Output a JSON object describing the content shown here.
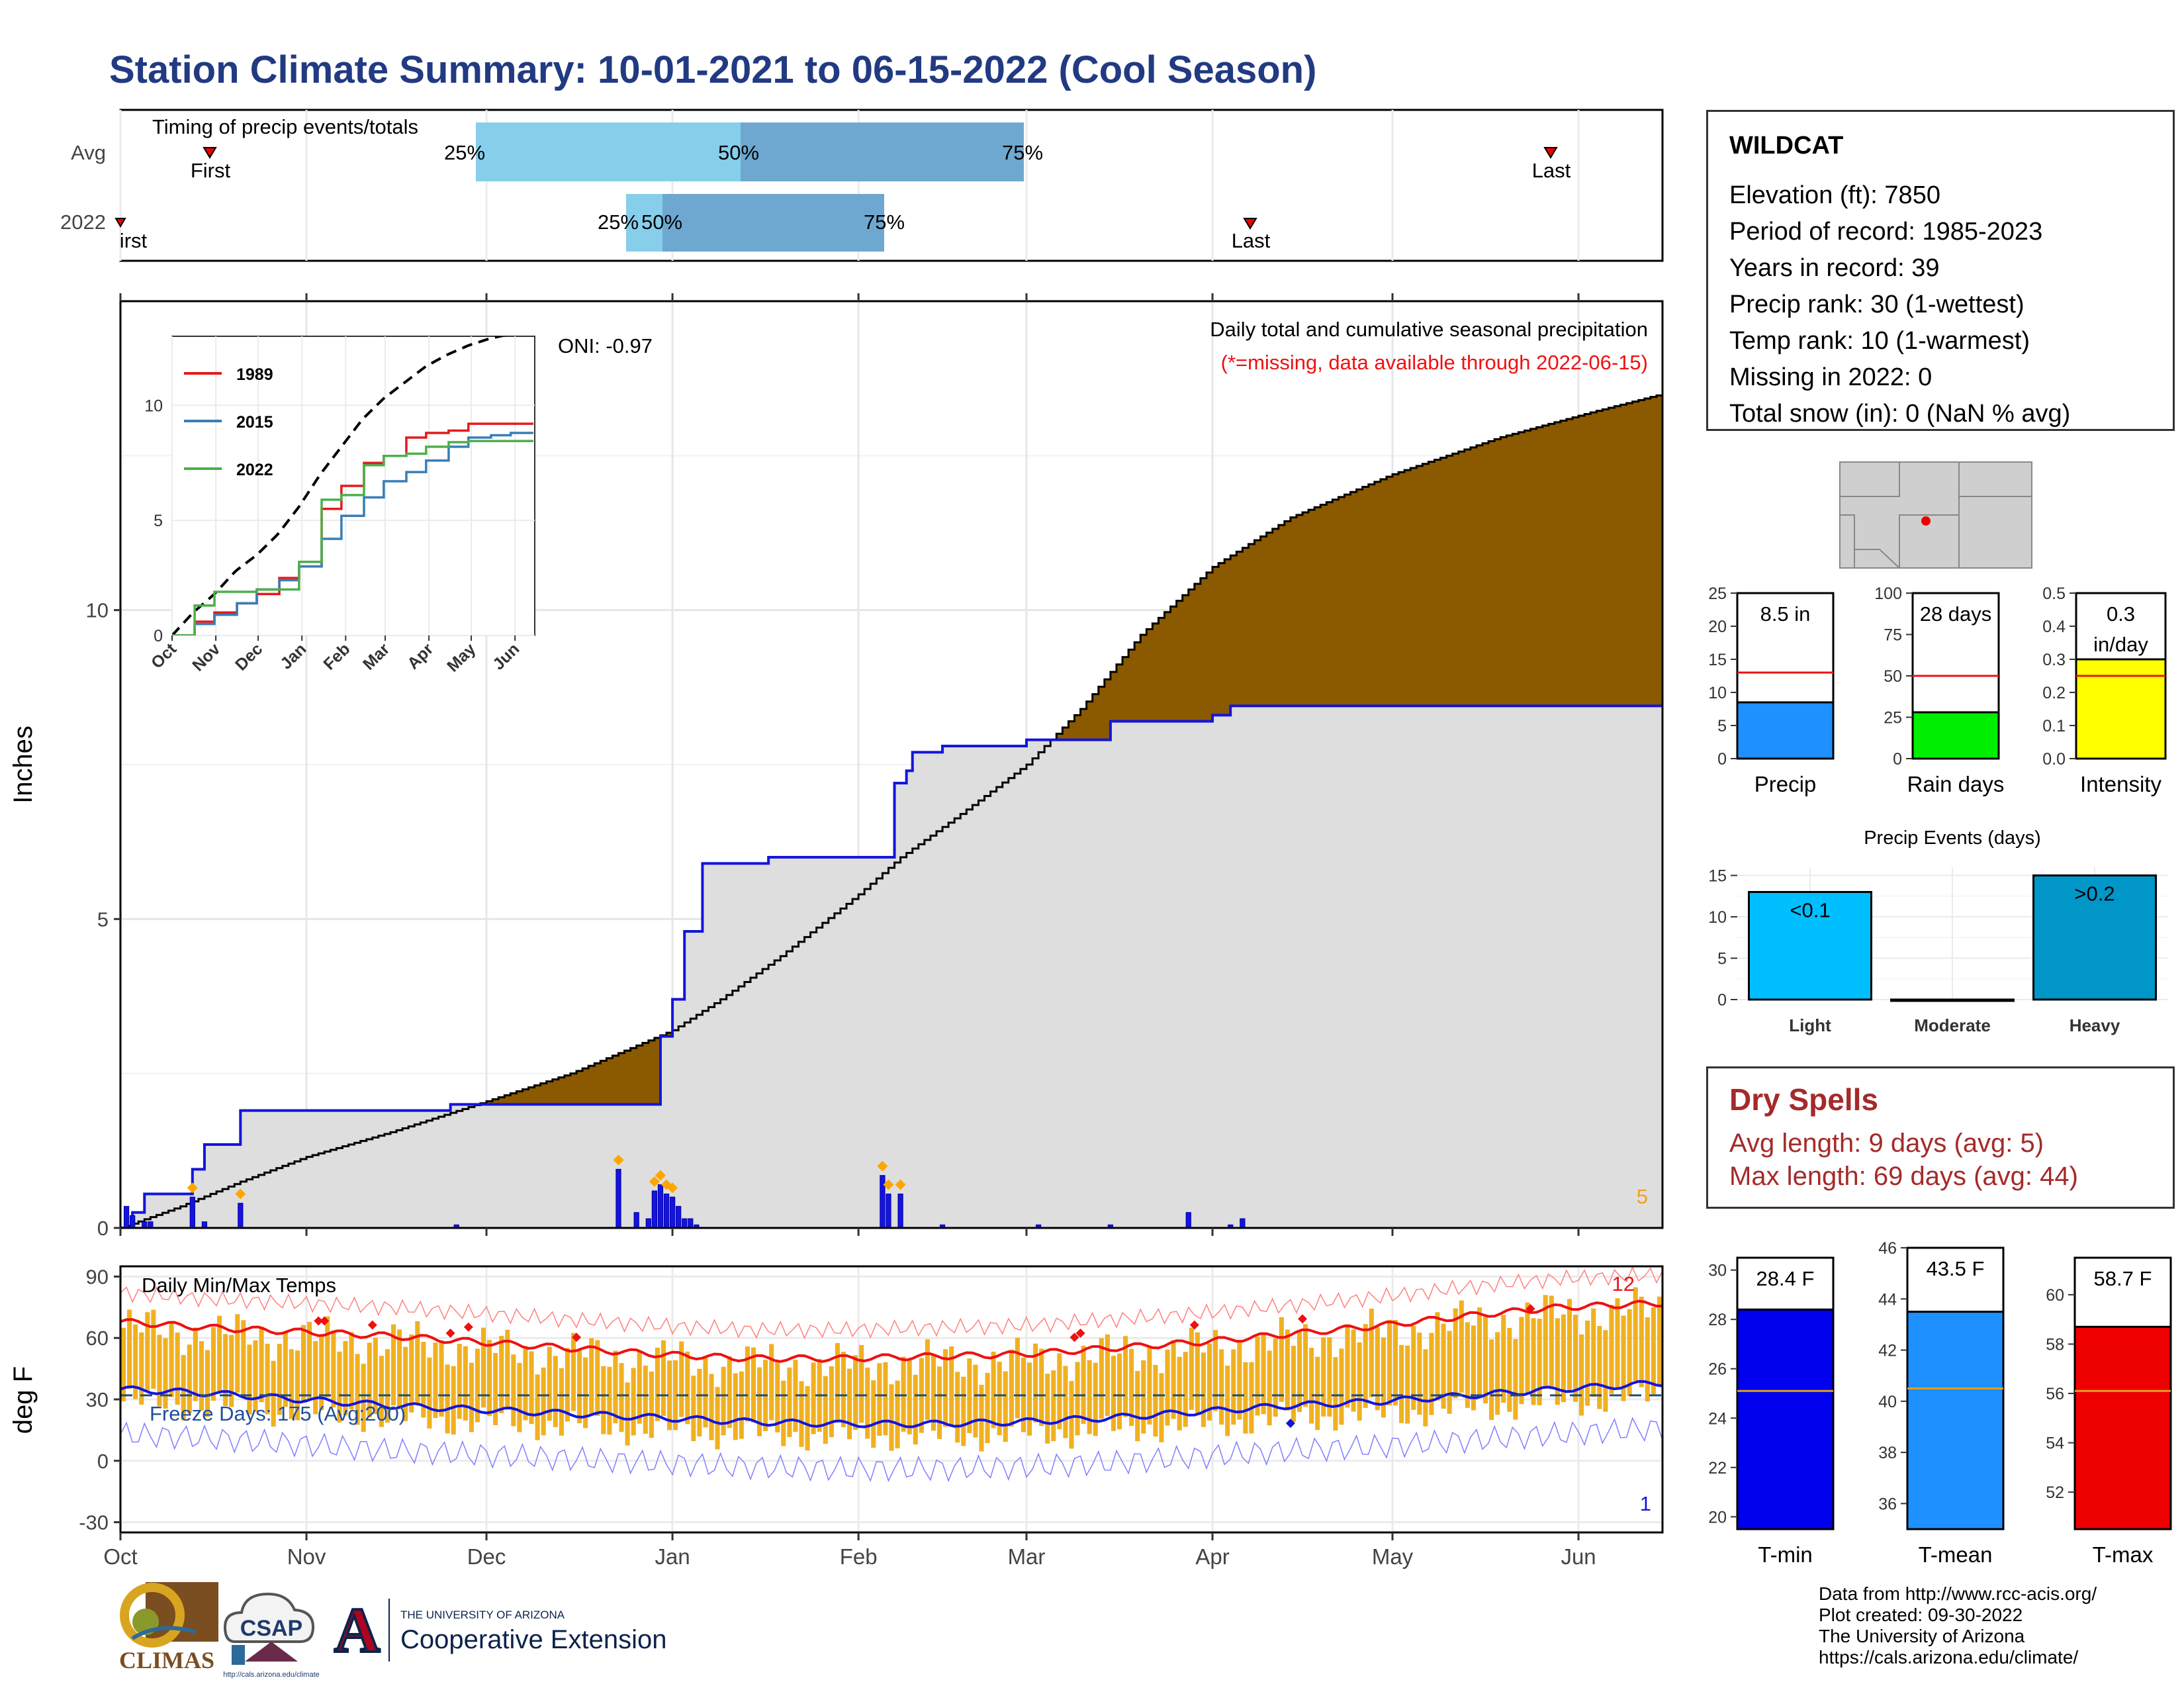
{
  "title": "Station Climate Summary: 10-01-2021 to 06-15-2022 (Cool Season)",
  "timing": {
    "panel_label": "Timing of precip events/totals",
    "rows": [
      "Avg",
      "2022"
    ],
    "pct_labels": [
      "25%",
      "50%",
      "75%"
    ],
    "first_label": "First",
    "first_label_2022": "First",
    "last_label": "Last"
  },
  "main": {
    "y_label": "Inches",
    "y_ticks": [
      "0",
      "5",
      "10"
    ],
    "oni": "ONI: -0.97",
    "desc": "Daily total and cumulative seasonal precipitation",
    "missing_note": "(*=missing, data available through 2022-06-15)",
    "corner_count": "5",
    "x_ticks": [
      "Oct",
      "Nov",
      "Dec",
      "Jan",
      "Feb",
      "Mar",
      "Apr",
      "May",
      "Jun"
    ]
  },
  "inset": {
    "legend": [
      "1989",
      "2015",
      "2022"
    ],
    "y_ticks": [
      "0",
      "5",
      "10"
    ],
    "x_ticks": [
      "Oct",
      "Nov",
      "Dec",
      "Jan",
      "Feb",
      "Mar",
      "Apr",
      "May",
      "Jun"
    ]
  },
  "temps": {
    "y_label": "deg F",
    "panel_label": "Daily Min/Max Temps",
    "freeze": "Freeze Days: 175 (Avg:200)",
    "y_ticks": [
      "90",
      "60",
      "30",
      "0",
      "-30"
    ],
    "max_count": "12",
    "min_count": "1"
  },
  "station": {
    "name": "WILDCAT",
    "elevation": "Elevation (ft): 7850",
    "period": "Period of record: 1985-2023",
    "years": "Years in record: 39",
    "precip_rank": "Precip rank: 30 (1-wettest)",
    "temp_rank": "Temp rank: 10 (1-warmest)",
    "missing": "Missing in 2022: 0",
    "snow": "Total snow (in): 0 (NaN % avg)"
  },
  "mini_bars": {
    "precip": {
      "label": "Precip",
      "value_label": "8.5 in",
      "ticks": [
        "0",
        "5",
        "10",
        "15",
        "20",
        "25"
      ]
    },
    "rain_days": {
      "label": "Rain days",
      "value_label": "28 days",
      "ticks": [
        "0",
        "25",
        "50",
        "75",
        "100"
      ]
    },
    "intensity": {
      "label": "Intensity",
      "value_label": "0.3",
      "value_label2": "in/day",
      "ticks": [
        "0.0",
        "0.1",
        "0.2",
        "0.3",
        "0.4",
        "0.5"
      ]
    }
  },
  "events": {
    "title": "Precip Events (days)",
    "categories": [
      "Light",
      "Moderate",
      "Heavy"
    ],
    "bar_labels": [
      "<0.1",
      "",
      ">0.2"
    ],
    "ticks": [
      "0",
      "5",
      "10",
      "15"
    ]
  },
  "dry": {
    "title": "Dry Spells",
    "avg": "Avg length: 9 days (avg: 5)",
    "max": "Max length: 69 days (avg: 44)"
  },
  "temp_bars": {
    "tmin": {
      "label": "T-min",
      "value_label": "28.4 F",
      "ticks": [
        "20",
        "22",
        "24",
        "26",
        "28",
        "30"
      ]
    },
    "tmean": {
      "label": "T-mean",
      "value_label": "43.5 F",
      "ticks": [
        "36",
        "38",
        "40",
        "42",
        "44",
        "46"
      ]
    },
    "tmax": {
      "label": "T-max",
      "value_label": "58.7 F",
      "ticks": [
        "52",
        "54",
        "56",
        "58",
        "60"
      ]
    }
  },
  "credits": [
    "Data from http://www.rcc-acis.org/",
    "Plot created: 09-30-2022",
    "The University of Arizona",
    "https://cals.arizona.edu/climate/"
  ],
  "logos": {
    "climas": "CLIMAS",
    "csap": "CSAP",
    "csap_url": "http://cals.arizona.edu/climate",
    "ua_small": "THE UNIVERSITY OF ARIZONA",
    "ua_big": "Cooperative Extension",
    "ua_letter": "A"
  },
  "colors": {
    "title": "#213a82",
    "brown": "#8b5a00",
    "green": "#138f13",
    "grey_fill": "#dedede",
    "blue_line": "#1414dc",
    "orange": "#f0b020",
    "red": "#ee1111",
    "light_blue": "#87ceeb",
    "steel_blue": "#6ea8d0"
  },
  "chart_data": [
    {
      "type": "area",
      "title": "Daily total and cumulative seasonal precipitation",
      "ylabel": "Inches",
      "ylim": [
        0,
        15
      ],
      "x_unit": "days since Oct 1",
      "series": [
        {
          "name": "avg_cumulative",
          "x": [
            0,
            10,
            20,
            31,
            45,
            61,
            75,
            92,
            100,
            110,
            123,
            130,
            140,
            151,
            160,
            170,
            182,
            195,
            212,
            230,
            245,
            257
          ],
          "y": [
            0,
            0.35,
            0.75,
            1.15,
            1.55,
            2.05,
            2.5,
            3.2,
            3.7,
            4.4,
            5.4,
            6.0,
            6.7,
            7.5,
            8.4,
            9.6,
            10.7,
            11.5,
            12.2,
            12.8,
            13.2,
            13.5
          ]
        },
        {
          "name": "2022_cumulative",
          "x": [
            0,
            2,
            4,
            12,
            14,
            20,
            37,
            55,
            84,
            90,
            92,
            94,
            97,
            100,
            107,
            108,
            115,
            125,
            129,
            131,
            132,
            137,
            151,
            153,
            165,
            182,
            185,
            187,
            257
          ],
          "y": [
            0,
            0.25,
            0.55,
            0.95,
            1.35,
            1.9,
            1.9,
            2.0,
            2.0,
            3.1,
            3.7,
            4.8,
            5.9,
            5.9,
            5.9,
            6.0,
            6.0,
            6.0,
            7.2,
            7.4,
            7.7,
            7.8,
            7.9,
            7.9,
            8.2,
            8.3,
            8.45,
            8.45,
            8.45
          ]
        }
      ],
      "daily_events": {
        "x": [
          1,
          2,
          4,
          5,
          12,
          14,
          20,
          56,
          83,
          86,
          88,
          89,
          90,
          91,
          92,
          93,
          94,
          95,
          96,
          127,
          128,
          130,
          137,
          153,
          165,
          178,
          185,
          187
        ],
        "y": [
          0.35,
          0.2,
          0.1,
          0.1,
          0.5,
          0.1,
          0.4,
          0.05,
          0.95,
          0.25,
          0.15,
          0.6,
          0.7,
          0.55,
          0.5,
          0.35,
          0.15,
          0.15,
          0.05,
          0.85,
          0.55,
          0.55,
          0.05,
          0.05,
          0.05,
          0.25,
          0.05,
          0.15
        ]
      }
    },
    {
      "type": "line",
      "title": "",
      "ylim": [
        0,
        13
      ],
      "x": [
        0,
        15,
        30,
        45,
        60,
        75,
        90,
        105,
        120,
        135,
        150,
        165,
        180,
        195,
        210,
        225,
        240,
        257
      ],
      "series": [
        {
          "name": "avg",
          "values": [
            0,
            1.0,
            1.8,
            2.8,
            3.5,
            4.4,
            5.6,
            7.0,
            8.2,
            9.4,
            10.3,
            11.0,
            11.7,
            12.2,
            12.6,
            12.9,
            13.1,
            13.3
          ]
        },
        {
          "name": "1989",
          "values": [
            0,
            0.6,
            1.0,
            1.4,
            1.8,
            2.5,
            3.0,
            5.5,
            6.5,
            7.5,
            7.8,
            8.6,
            8.8,
            8.9,
            9.2,
            9.2,
            9.2,
            9.2
          ]
        },
        {
          "name": "2015",
          "values": [
            0,
            0.5,
            0.9,
            1.4,
            2.0,
            2.4,
            3.0,
            4.2,
            5.2,
            6.0,
            6.7,
            7.1,
            7.6,
            8.2,
            8.6,
            8.7,
            8.8,
            8.8
          ]
        },
        {
          "name": "2022",
          "values": [
            0,
            1.3,
            1.9,
            1.9,
            2.0,
            2.0,
            3.2,
            5.9,
            6.1,
            7.4,
            7.8,
            7.9,
            8.2,
            8.4,
            8.45,
            8.45,
            8.45,
            8.45
          ]
        }
      ]
    },
    {
      "type": "line",
      "title": "Daily Min/Max Temps",
      "ylabel": "deg F",
      "ylim": [
        -35,
        95
      ],
      "x": [
        0,
        15,
        30,
        45,
        60,
        75,
        90,
        105,
        120,
        135,
        150,
        165,
        180,
        195,
        210,
        225,
        240,
        257
      ],
      "series": [
        {
          "name": "avg max",
          "values": [
            68,
            65,
            63,
            61,
            58,
            55,
            52,
            50,
            50,
            51,
            52,
            55,
            58,
            62,
            66,
            71,
            75,
            77
          ]
        },
        {
          "name": "avg min",
          "values": [
            35,
            33,
            30,
            27,
            25,
            23,
            21,
            19,
            18,
            18,
            19,
            21,
            24,
            27,
            29,
            32,
            35,
            38
          ]
        }
      ],
      "freeze_line": 32
    },
    {
      "type": "bar",
      "title": "Precip Events (days)",
      "categories": [
        "Light",
        "Moderate",
        "Heavy"
      ],
      "values": [
        13,
        0,
        15
      ],
      "ylim": [
        0,
        16
      ]
    },
    {
      "type": "bar",
      "categories": [
        "Precip",
        "Rain days",
        "Intensity"
      ],
      "values": [
        8.5,
        28,
        0.3
      ],
      "averages": [
        13,
        50,
        0.25
      ]
    },
    {
      "type": "bar",
      "categories": [
        "T-min",
        "T-mean",
        "T-max"
      ],
      "values": [
        28.4,
        43.5,
        58.7
      ],
      "averages": [
        25.1,
        40.5,
        56.1
      ]
    }
  ]
}
